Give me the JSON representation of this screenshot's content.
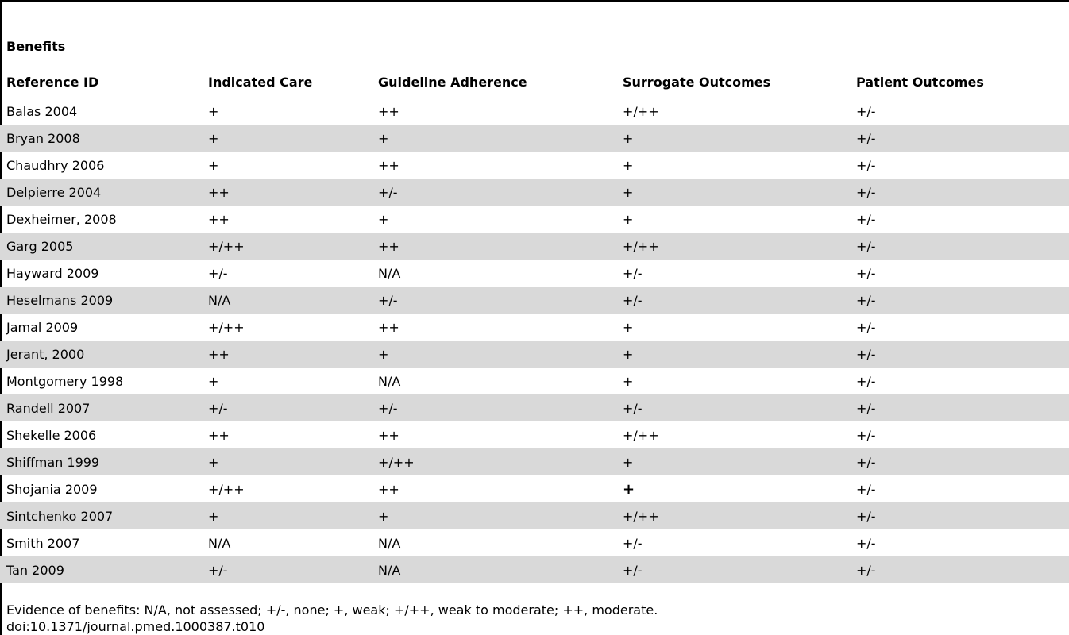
{
  "section_label": "Benefits",
  "columns": [
    "Reference ID",
    "Indicated Care",
    "Guideline Adherence",
    "Surrogate Outcomes",
    "Patient Outcomes"
  ],
  "rows": [
    [
      "Balas 2004",
      "+",
      "++",
      "+/++",
      "+/-"
    ],
    [
      "Bryan 2008",
      "+",
      "+",
      "+",
      "+/-"
    ],
    [
      "Chaudhry 2006",
      "+",
      "++",
      "+",
      "+/-"
    ],
    [
      "Delpierre 2004",
      "++",
      "+/-",
      "+",
      "+/-"
    ],
    [
      "Dexheimer, 2008",
      "++",
      "+",
      "+",
      "+/-"
    ],
    [
      "Garg 2005",
      "+/++",
      "++",
      "+/++",
      "+/-"
    ],
    [
      "Hayward 2009",
      "+/-",
      "N/A",
      "+/-",
      "+/-"
    ],
    [
      "Heselmans 2009",
      "N/A",
      "+/-",
      "+/-",
      "+/-"
    ],
    [
      "Jamal 2009",
      "+/++",
      "++",
      "+",
      "+/-"
    ],
    [
      "Jerant, 2000",
      "++",
      "+",
      "+",
      "+/-"
    ],
    [
      "Montgomery 1998",
      "+",
      "N/A",
      "+",
      "+/-"
    ],
    [
      "Randell 2007",
      "+/-",
      "+/-",
      "+/-",
      "+/-"
    ],
    [
      "Shekelle 2006",
      "++",
      "++",
      "+/++",
      "+/-"
    ],
    [
      "Shiffman 1999",
      "+",
      "+/++",
      "+",
      "+/-"
    ],
    [
      "Shojania 2009",
      "+/++",
      "++",
      "+",
      "+/-"
    ],
    [
      "Sintchenko 2007",
      "+",
      "+",
      "+/++",
      "+/-"
    ],
    [
      "Smith 2007",
      "N/A",
      "N/A",
      "+/-",
      "+/-"
    ],
    [
      "Tan 2009",
      "+/-",
      "N/A",
      "+/-",
      "+/-"
    ]
  ],
  "footnote": "Evidence of benefits: N/A, not assessed; +/-, none; +, weak; +/++, weak to moderate; ++, moderate.",
  "doi": "doi:10.1371/journal.pmed.1000387.t010"
}
